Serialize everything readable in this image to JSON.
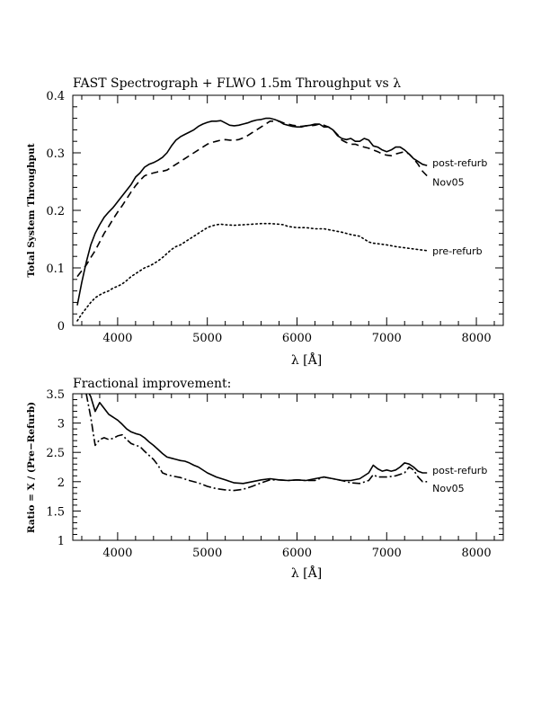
{
  "chart_data": [
    {
      "type": "line",
      "title": "FAST Spectrograph + FLWO 1.5m Throughput vs λ",
      "xlabel": "λ [Å]",
      "ylabel": "Total System Throughput",
      "xlim": [
        3500,
        8300
      ],
      "ylim": [
        0,
        0.4
      ],
      "xticks": [
        "4000",
        "5000",
        "6000",
        "7000",
        "8000"
      ],
      "yticks": [
        "0",
        "0.1",
        "0.2",
        "0.3",
        "0.4"
      ],
      "grid": false,
      "series": [
        {
          "name": "post-refurb",
          "style": "solid",
          "x": [
            3550,
            3600,
            3650,
            3700,
            3750,
            3800,
            3850,
            3900,
            3950,
            4000,
            4050,
            4100,
            4150,
            4200,
            4250,
            4300,
            4350,
            4400,
            4450,
            4500,
            4550,
            4600,
            4650,
            4700,
            4750,
            4800,
            4850,
            4900,
            4950,
            5000,
            5050,
            5100,
            5150,
            5200,
            5250,
            5300,
            5350,
            5400,
            5450,
            5500,
            5550,
            5600,
            5650,
            5700,
            5750,
            5800,
            5850,
            5900,
            5950,
            6000,
            6050,
            6100,
            6150,
            6200,
            6250,
            6300,
            6350,
            6400,
            6450,
            6500,
            6550,
            6600,
            6650,
            6700,
            6750,
            6800,
            6850,
            6900,
            6950,
            7000,
            7050,
            7100,
            7150,
            7200,
            7250,
            7300,
            7350,
            7400,
            7450
          ],
          "y": [
            0.035,
            0.075,
            0.11,
            0.14,
            0.16,
            0.175,
            0.188,
            0.197,
            0.205,
            0.215,
            0.225,
            0.235,
            0.245,
            0.258,
            0.265,
            0.275,
            0.28,
            0.283,
            0.287,
            0.292,
            0.3,
            0.312,
            0.322,
            0.328,
            0.332,
            0.336,
            0.34,
            0.346,
            0.35,
            0.353,
            0.355,
            0.355,
            0.356,
            0.352,
            0.348,
            0.347,
            0.348,
            0.35,
            0.352,
            0.355,
            0.357,
            0.358,
            0.36,
            0.36,
            0.358,
            0.355,
            0.35,
            0.348,
            0.346,
            0.345,
            0.345,
            0.347,
            0.348,
            0.35,
            0.35,
            0.345,
            0.345,
            0.34,
            0.33,
            0.325,
            0.323,
            0.325,
            0.32,
            0.32,
            0.325,
            0.322,
            0.312,
            0.31,
            0.305,
            0.302,
            0.305,
            0.31,
            0.31,
            0.305,
            0.298,
            0.29,
            0.285,
            0.28,
            0.278
          ]
        },
        {
          "name": "Nov05",
          "style": "dashed",
          "x": [
            3550,
            3600,
            3650,
            3700,
            3750,
            3800,
            3850,
            3900,
            3950,
            4000,
            4050,
            4100,
            4150,
            4200,
            4250,
            4300,
            4350,
            4400,
            4450,
            4500,
            4550,
            4600,
            4650,
            4700,
            4750,
            4800,
            4850,
            4900,
            4950,
            5000,
            5050,
            5100,
            5150,
            5200,
            5250,
            5300,
            5350,
            5400,
            5450,
            5500,
            5550,
            5600,
            5650,
            5700,
            5750,
            5800,
            5850,
            5900,
            5950,
            6000,
            6050,
            6100,
            6150,
            6200,
            6250,
            6300,
            6350,
            6400,
            6450,
            6500,
            6550,
            6600,
            6650,
            6700,
            6750,
            6800,
            6850,
            6900,
            6950,
            7000,
            7050,
            7100,
            7150,
            7200,
            7250,
            7300,
            7350,
            7400,
            7450
          ],
          "y": [
            0.085,
            0.095,
            0.105,
            0.118,
            0.13,
            0.145,
            0.16,
            0.172,
            0.185,
            0.197,
            0.208,
            0.22,
            0.232,
            0.243,
            0.252,
            0.26,
            0.263,
            0.265,
            0.267,
            0.268,
            0.27,
            0.275,
            0.28,
            0.285,
            0.29,
            0.295,
            0.3,
            0.305,
            0.31,
            0.315,
            0.318,
            0.32,
            0.322,
            0.323,
            0.322,
            0.322,
            0.323,
            0.326,
            0.33,
            0.335,
            0.34,
            0.345,
            0.35,
            0.355,
            0.355,
            0.355,
            0.352,
            0.35,
            0.348,
            0.347,
            0.346,
            0.347,
            0.347,
            0.348,
            0.35,
            0.348,
            0.345,
            0.34,
            0.332,
            0.322,
            0.318,
            0.315,
            0.315,
            0.312,
            0.31,
            0.308,
            0.305,
            0.302,
            0.298,
            0.296,
            0.295,
            0.298,
            0.3,
            0.302,
            0.298,
            0.29,
            0.28,
            0.268,
            0.26
          ]
        },
        {
          "name": "pre-refurb",
          "style": "dotted",
          "x": [
            3550,
            3600,
            3650,
            3700,
            3750,
            3800,
            3850,
            3900,
            3950,
            4000,
            4050,
            4100,
            4150,
            4200,
            4250,
            4300,
            4350,
            4400,
            4450,
            4500,
            4550,
            4600,
            4650,
            4700,
            4750,
            4800,
            4850,
            4900,
            4950,
            5000,
            5050,
            5100,
            5150,
            5200,
            5300,
            5400,
            5500,
            5600,
            5700,
            5800,
            5850,
            5900,
            6000,
            6100,
            6200,
            6300,
            6400,
            6500,
            6600,
            6700,
            6750,
            6800,
            6850,
            6900,
            7000,
            7100,
            7200,
            7300,
            7400,
            7450
          ],
          "y": [
            0.008,
            0.02,
            0.03,
            0.04,
            0.048,
            0.053,
            0.057,
            0.06,
            0.065,
            0.068,
            0.072,
            0.078,
            0.085,
            0.09,
            0.095,
            0.1,
            0.103,
            0.107,
            0.112,
            0.118,
            0.125,
            0.132,
            0.137,
            0.14,
            0.145,
            0.15,
            0.155,
            0.16,
            0.165,
            0.17,
            0.173,
            0.175,
            0.176,
            0.175,
            0.174,
            0.175,
            0.176,
            0.177,
            0.177,
            0.176,
            0.175,
            0.172,
            0.17,
            0.17,
            0.168,
            0.168,
            0.165,
            0.162,
            0.158,
            0.155,
            0.15,
            0.145,
            0.143,
            0.142,
            0.14,
            0.137,
            0.135,
            0.133,
            0.131,
            0.13
          ]
        }
      ]
    },
    {
      "type": "line",
      "title": "Fractional improvement:",
      "xlabel": "λ [Å]",
      "ylabel": "Ratio = X / (Pre−Refurb)",
      "xlim": [
        3500,
        8300
      ],
      "ylim": [
        1,
        3.5
      ],
      "xticks": [
        "4000",
        "5000",
        "6000",
        "7000",
        "8000"
      ],
      "yticks": [
        "1",
        "1.5",
        "2",
        "2.5",
        "3",
        "3.5"
      ],
      "grid": false,
      "series": [
        {
          "name": "post-refurb",
          "style": "solid",
          "x": [
            3650,
            3700,
            3750,
            3800,
            3850,
            3900,
            3950,
            4000,
            4050,
            4100,
            4150,
            4200,
            4250,
            4300,
            4350,
            4400,
            4450,
            4500,
            4550,
            4600,
            4650,
            4700,
            4750,
            4800,
            4850,
            4900,
            5000,
            5100,
            5200,
            5300,
            5400,
            5500,
            5600,
            5700,
            5800,
            5900,
            6000,
            6100,
            6200,
            6300,
            6400,
            6500,
            6600,
            6700,
            6800,
            6850,
            6900,
            6950,
            7000,
            7050,
            7100,
            7150,
            7200,
            7250,
            7300,
            7350,
            7400,
            7450
          ],
          "y": [
            3.6,
            3.45,
            3.2,
            3.35,
            3.25,
            3.15,
            3.1,
            3.05,
            2.98,
            2.9,
            2.85,
            2.82,
            2.8,
            2.75,
            2.68,
            2.62,
            2.55,
            2.48,
            2.42,
            2.4,
            2.38,
            2.36,
            2.35,
            2.32,
            2.28,
            2.25,
            2.15,
            2.08,
            2.03,
            1.98,
            1.97,
            2.0,
            2.03,
            2.05,
            2.03,
            2.02,
            2.03,
            2.02,
            2.05,
            2.08,
            2.05,
            2.02,
            2.02,
            2.05,
            2.15,
            2.28,
            2.22,
            2.18,
            2.2,
            2.18,
            2.2,
            2.25,
            2.32,
            2.3,
            2.25,
            2.18,
            2.15,
            2.15
          ]
        },
        {
          "name": "Nov05",
          "style": "dashdot",
          "x": [
            3650,
            3700,
            3750,
            3800,
            3850,
            3900,
            3950,
            4000,
            4050,
            4100,
            4150,
            4200,
            4250,
            4300,
            4350,
            4400,
            4450,
            4500,
            4550,
            4600,
            4700,
            4800,
            4900,
            5000,
            5100,
            5200,
            5300,
            5400,
            5500,
            5600,
            5700,
            5800,
            5900,
            6000,
            6100,
            6200,
            6300,
            6400,
            6500,
            6600,
            6700,
            6800,
            6850,
            6900,
            7000,
            7100,
            7200,
            7250,
            7300,
            7350,
            7400,
            7450
          ],
          "y": [
            3.5,
            3.1,
            2.62,
            2.72,
            2.75,
            2.72,
            2.74,
            2.78,
            2.8,
            2.72,
            2.65,
            2.62,
            2.6,
            2.52,
            2.45,
            2.38,
            2.28,
            2.15,
            2.12,
            2.1,
            2.07,
            2.02,
            1.98,
            1.92,
            1.88,
            1.86,
            1.85,
            1.87,
            1.92,
            1.98,
            2.03,
            2.03,
            2.02,
            2.03,
            2.02,
            2.02,
            2.08,
            2.05,
            2.02,
            1.98,
            1.97,
            2.02,
            2.12,
            2.08,
            2.08,
            2.1,
            2.15,
            2.25,
            2.2,
            2.08,
            2.0,
            2.0
          ]
        }
      ]
    }
  ]
}
